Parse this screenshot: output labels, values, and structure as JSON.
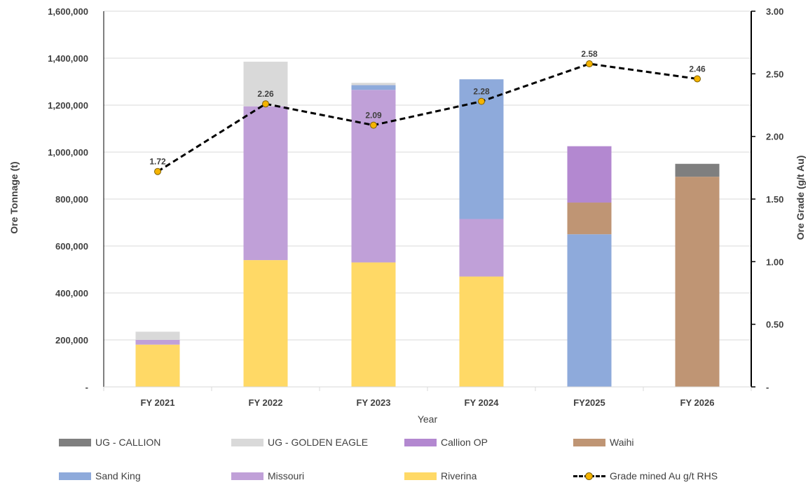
{
  "chart_data": {
    "type": "bar",
    "subtype": "stacked bar with line on secondary axis",
    "categories": [
      "FY 2021",
      "FY 2022",
      "FY 2023",
      "FY 2024",
      "FY2025",
      "FY 2026"
    ],
    "xlabel": "Year",
    "ylabel": "Ore Tonnage (t)",
    "y2label": "Ore Grade  (g/t Au)",
    "ylim": [
      0,
      1600000
    ],
    "y2lim": [
      0,
      3.0
    ],
    "y_ticks": [
      "-",
      "200,000",
      "400,000",
      "600,000",
      "800,000",
      "1,000,000",
      "1,200,000",
      "1,400,000",
      "1,600,000"
    ],
    "y2_ticks": [
      "-",
      "0.50",
      "1.00",
      "1.50",
      "2.00",
      "2.50",
      "3.00"
    ],
    "grid": true,
    "legend_position": "bottom",
    "series": [
      {
        "name": "Riverina",
        "color": "#ffd966",
        "values": [
          180000,
          540000,
          530000,
          470000,
          0,
          0
        ]
      },
      {
        "name": "Sand King",
        "color": "#8eaadb",
        "values": [
          0,
          0,
          0,
          0,
          650000,
          0
        ]
      },
      {
        "name": "Waihi",
        "color": "#bf9574",
        "values": [
          0,
          0,
          0,
          0,
          135000,
          895000
        ]
      },
      {
        "name": "Missouri",
        "color": "#c0a0d8",
        "values": [
          20000,
          655000,
          735000,
          245000,
          0,
          0
        ]
      },
      {
        "name": "Callion OP",
        "color": "#b388d0",
        "values": [
          0,
          0,
          0,
          0,
          240000,
          0
        ]
      },
      {
        "name": "Sand King",
        "color": "#8eaadb",
        "values": [
          0,
          0,
          20000,
          595000,
          0,
          0
        ]
      },
      {
        "name": "UG - GOLDEN EAGLE",
        "color": "#d9d9d9",
        "values": [
          35000,
          190000,
          10000,
          0,
          0,
          0
        ]
      },
      {
        "name": "UG - CALLION",
        "color": "#7f7f7f",
        "values": [
          0,
          0,
          0,
          0,
          0,
          55000
        ]
      }
    ],
    "line_series": {
      "name": "Grade mined Au g/t RHS",
      "axis": "secondary",
      "values": [
        1.72,
        2.26,
        2.09,
        2.28,
        2.58,
        2.46
      ],
      "labels": [
        "1.72",
        "2.26",
        "2.09",
        "2.28",
        "2.58",
        "2.46"
      ],
      "line_color": "#000000",
      "marker_color": "#f5b400"
    },
    "legend": [
      {
        "label": "UG - CALLION",
        "type": "box",
        "color": "#7f7f7f"
      },
      {
        "label": "UG - GOLDEN EAGLE",
        "type": "box",
        "color": "#d9d9d9"
      },
      {
        "label": "Callion OP",
        "type": "box",
        "color": "#b388d0"
      },
      {
        "label": "Waihi",
        "type": "box",
        "color": "#bf9574"
      },
      {
        "label": "Sand King",
        "type": "box",
        "color": "#8eaadb"
      },
      {
        "label": "Missouri",
        "type": "box",
        "color": "#c0a0d8"
      },
      {
        "label": "Riverina",
        "type": "box",
        "color": "#ffd966"
      },
      {
        "label": "Grade mined Au g/t RHS",
        "type": "line"
      }
    ]
  }
}
